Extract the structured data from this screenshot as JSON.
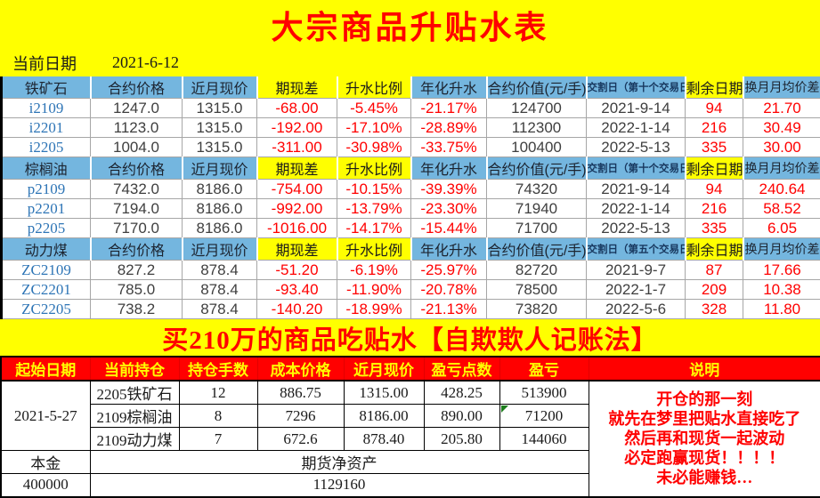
{
  "page": {
    "title": "大宗商品升贴水表",
    "date_label": "当前日期",
    "date_value": "2021-6-12"
  },
  "colors": {
    "banner_bg": "#FFFF00",
    "title_red": "#FF0000",
    "header_blue": "#74B6DF",
    "header_yellow": "#FFFF00",
    "link_blue": "#2E75B6",
    "value_dark": "#3F3F3F",
    "negative_red": "#FF0000",
    "bottom_header_bg": "#FF0000",
    "bottom_header_text": "#FFFF00",
    "error_flag_green": "#1C7C1C"
  },
  "premium_table": {
    "common_headers": {
      "contract_price": "合约价格",
      "near_month_price": "近月现价",
      "basis": "期现差",
      "premium_ratio": "升水比例",
      "annualized_premium": "年化升水",
      "contract_value": "合约价值(元/手)",
      "remaining_days": "剩余日期",
      "rollover_avg_diff": "换月月均价差"
    },
    "sections": [
      {
        "commodity": "铁矿石",
        "delivery_header": "交割日（第十个交易日）",
        "rows": [
          {
            "code": "i2109",
            "price": "1247.0",
            "spot": "1315.0",
            "basis": "-68.00",
            "ratio": "-5.45%",
            "annualized": "-21.17%",
            "value": "124700",
            "delivery": "2021-9-14",
            "days": "94",
            "rollover": "21.70"
          },
          {
            "code": "i2201",
            "price": "1123.0",
            "spot": "1315.0",
            "basis": "-192.00",
            "ratio": "-17.10%",
            "annualized": "-28.89%",
            "value": "112300",
            "delivery": "2022-1-14",
            "days": "216",
            "rollover": "30.49"
          },
          {
            "code": "i2205",
            "price": "1004.0",
            "spot": "1315.0",
            "basis": "-311.00",
            "ratio": "-30.98%",
            "annualized": "-33.75%",
            "value": "100400",
            "delivery": "2022-5-13",
            "days": "335",
            "rollover": "30.00"
          }
        ]
      },
      {
        "commodity": "棕榈油",
        "delivery_header": "交割日（第十个交易日）",
        "rows": [
          {
            "code": "p2109",
            "price": "7432.0",
            "spot": "8186.0",
            "basis": "-754.00",
            "ratio": "-10.15%",
            "annualized": "-39.39%",
            "value": "74320",
            "delivery": "2021-9-14",
            "days": "94",
            "rollover": "240.64"
          },
          {
            "code": "p2201",
            "price": "7194.0",
            "spot": "8186.0",
            "basis": "-992.00",
            "ratio": "-13.79%",
            "annualized": "-23.30%",
            "value": "71940",
            "delivery": "2022-1-14",
            "days": "216",
            "rollover": "58.52"
          },
          {
            "code": "p2205",
            "price": "7170.0",
            "spot": "8186.0",
            "basis": "-1016.00",
            "ratio": "-14.17%",
            "annualized": "-15.44%",
            "value": "71700",
            "delivery": "2022-5-13",
            "days": "335",
            "rollover": "6.05"
          }
        ]
      },
      {
        "commodity": "动力煤",
        "delivery_header": "交割日（第五个交易日）",
        "rows": [
          {
            "code": "ZC2109",
            "price": "827.2",
            "spot": "878.4",
            "basis": "-51.20",
            "ratio": "-6.19%",
            "annualized": "-25.97%",
            "value": "82720",
            "delivery": "2021-9-7",
            "days": "87",
            "rollover": "17.66"
          },
          {
            "code": "ZC2201",
            "price": "785.0",
            "spot": "878.4",
            "basis": "-93.40",
            "ratio": "-11.90%",
            "annualized": "-20.78%",
            "value": "78500",
            "delivery": "2022-1-7",
            "days": "209",
            "rollover": "10.38"
          },
          {
            "code": "ZC2205",
            "price": "738.2",
            "spot": "878.4",
            "basis": "-140.20",
            "ratio": "-18.99%",
            "annualized": "-21.13%",
            "value": "73820",
            "delivery": "2022-5-6",
            "days": "328",
            "rollover": "11.80"
          }
        ]
      }
    ]
  },
  "banner2": {
    "text": "买210万的商品吃贴水【自欺欺人记账法】"
  },
  "position_table": {
    "headers": [
      "起始日期",
      "当前持仓",
      "持仓手数",
      "成本价格",
      "近月现价",
      "盈亏点数",
      "盈亏",
      "说明"
    ],
    "start_date": "2021-5-27",
    "rows": [
      {
        "name": "2205铁矿石",
        "lots": "12",
        "cost": "886.75",
        "spot": "1315.00",
        "points": "428.25",
        "pnl": "513900"
      },
      {
        "name": "2109棕榈油",
        "lots": "8",
        "cost": "7296",
        "spot": "8186.00",
        "points": "890.00",
        "pnl": "71200"
      },
      {
        "name": "2109动力煤",
        "lots": "7",
        "cost": "672.6",
        "spot": "878.40",
        "points": "205.80",
        "pnl": "144060"
      }
    ],
    "principal_label": "本金",
    "principal_value": "400000",
    "net_asset_label": "期货净资产",
    "net_asset_value": "1129160",
    "note_lines": [
      "开仓的那一刻",
      "就先在梦里把贴水直接吃了",
      "然后再和现货一起波动",
      "必定跑赢现货！！！！",
      "未必能赚钱…"
    ]
  }
}
